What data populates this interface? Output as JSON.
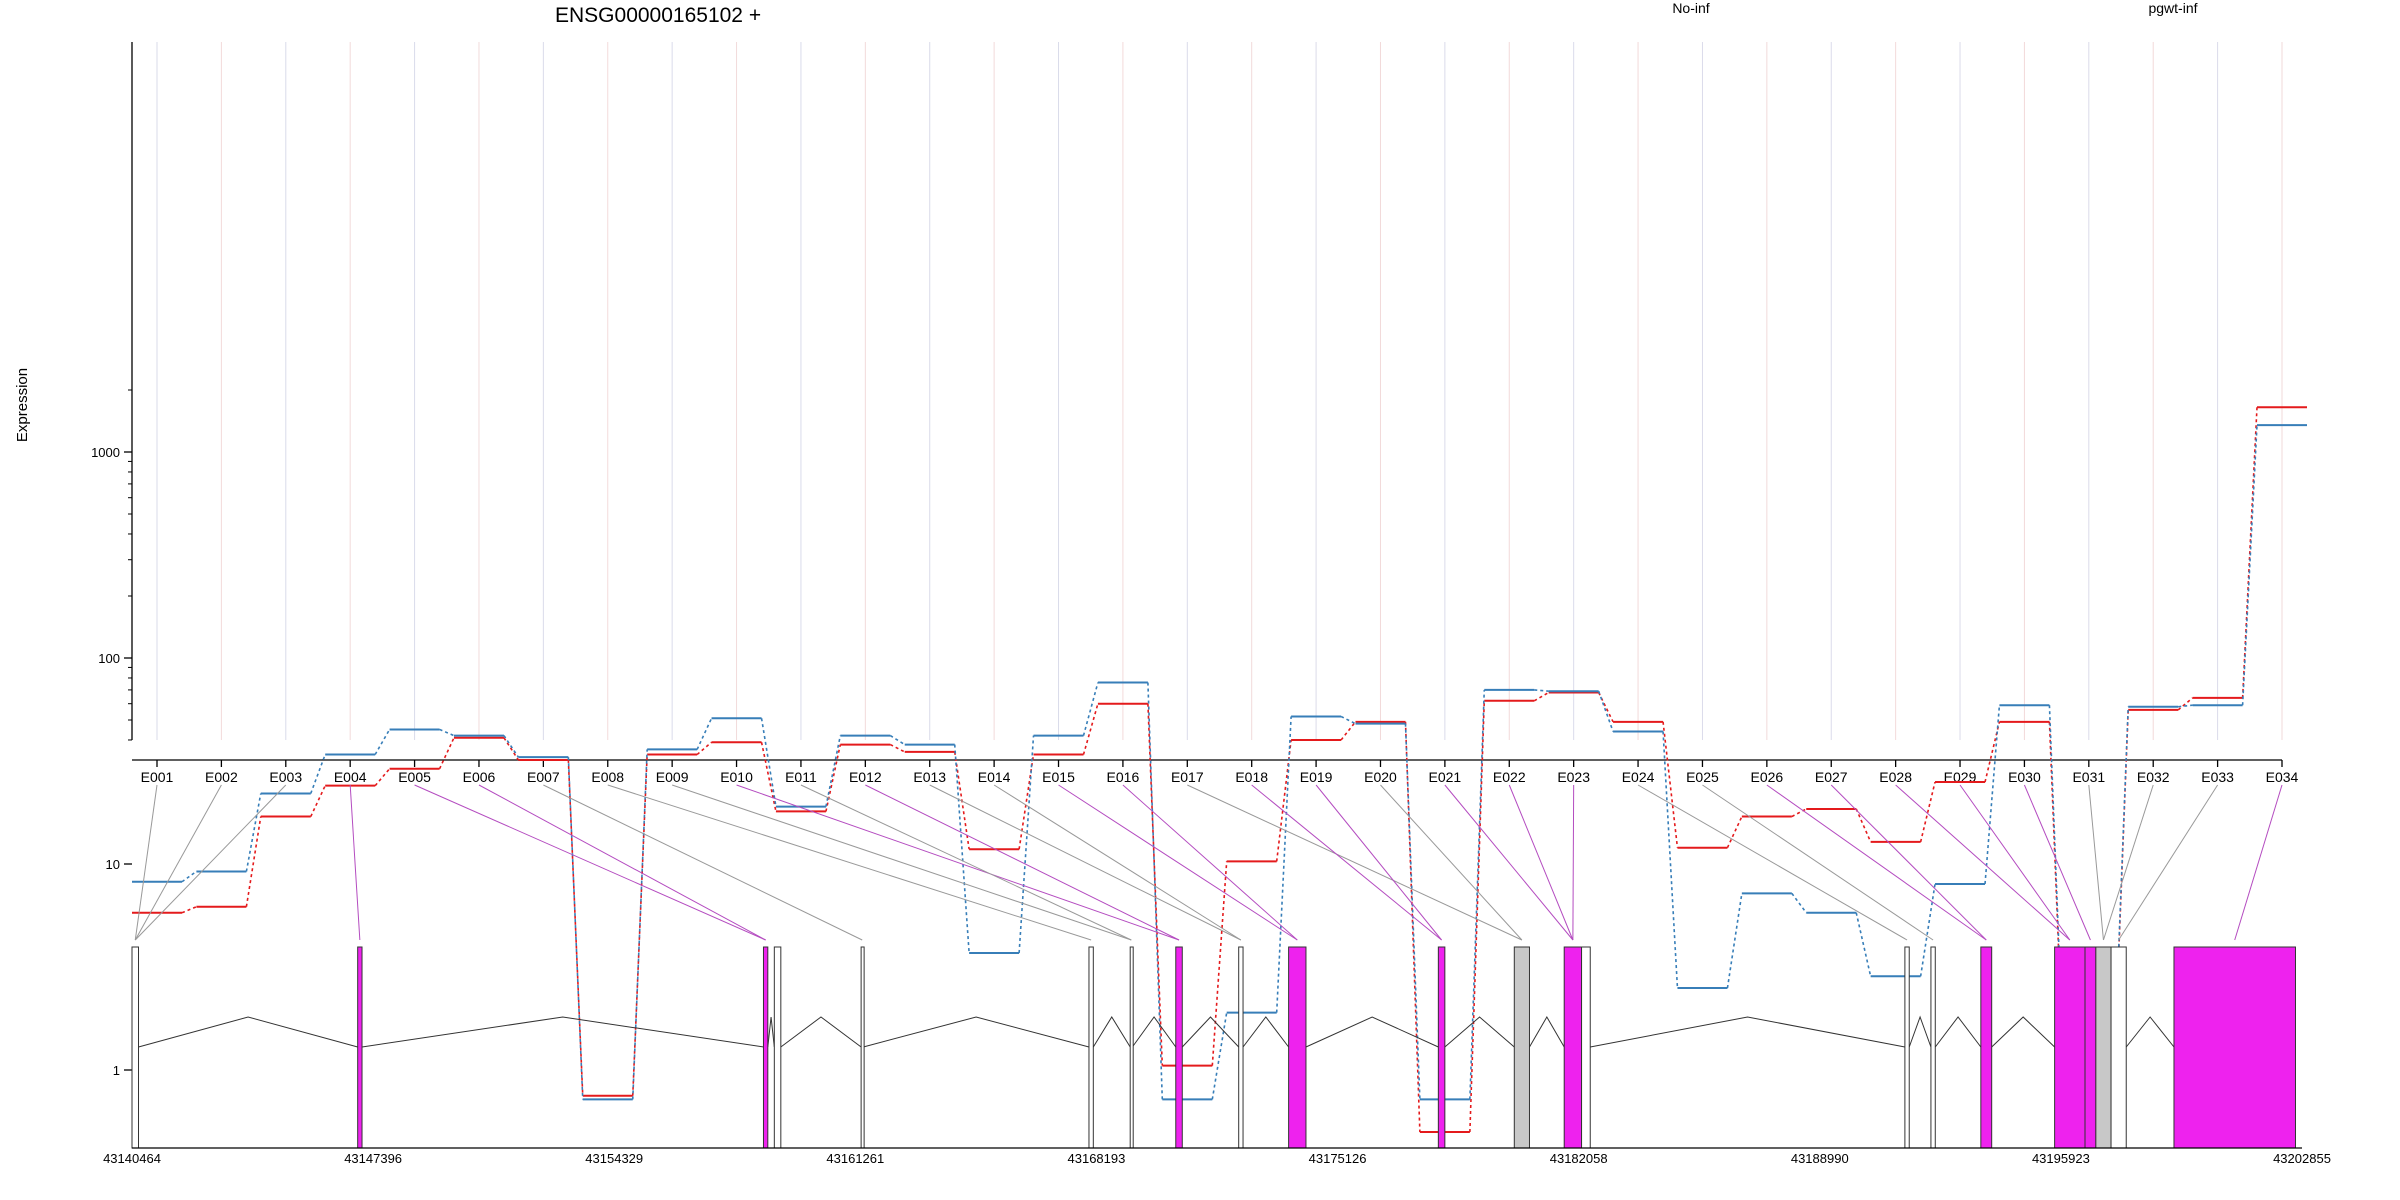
{
  "chart_data": {
    "type": "line",
    "title": "ENSG00000165102 +",
    "ylabel": "Expression",
    "yscale": "log",
    "ylim": [
      0.38,
      2200
    ],
    "yticks": [
      1,
      10,
      100,
      1000
    ],
    "ytick_labels": [
      "1",
      "10",
      "100",
      "1000"
    ],
    "grid": true,
    "legend_placement": "top",
    "categories": [
      "E001",
      "E002",
      "E003",
      "E004",
      "E005",
      "E006",
      "E007",
      "E008",
      "E009",
      "E010",
      "E011",
      "E012",
      "E013",
      "E014",
      "E015",
      "E016",
      "E017",
      "E018",
      "E019",
      "E020",
      "E021",
      "E022",
      "E023",
      "E024",
      "E025",
      "E026",
      "E027",
      "E028",
      "E029",
      "E030",
      "E031",
      "E032",
      "E033",
      "E034"
    ],
    "series": [
      {
        "name": "No-inf",
        "color": "#e41a1c",
        "values": [
          5.8,
          6.2,
          17,
          24,
          29,
          41,
          32,
          0.75,
          34,
          39,
          18,
          38,
          35,
          11.8,
          34,
          60,
          1.05,
          10.3,
          40,
          49,
          0.5,
          62,
          68,
          49,
          12,
          17,
          18.5,
          12.8,
          25,
          49,
          0.9,
          56,
          64,
          1650
        ]
      },
      {
        "name": "pgwt-inf",
        "color": "#377eb8",
        "values": [
          8.2,
          9.2,
          22,
          34,
          45,
          42,
          33,
          0.72,
          36,
          51,
          19,
          42,
          38,
          3.7,
          42,
          76,
          0.72,
          1.9,
          52,
          48,
          0.72,
          70,
          69,
          44,
          2.5,
          7.2,
          5.8,
          2.85,
          8,
          59,
          0.97,
          58,
          59,
          1350
        ]
      }
    ],
    "genome": {
      "tick_labels": [
        "43140464",
        "43147396",
        "43154329",
        "43161261",
        "43168193",
        "43175126",
        "43182058",
        "43188990",
        "43195923",
        "43202855"
      ],
      "exon_highlight_color": "#ee22ee",
      "exon_plain_color": "#ffffff",
      "exon_grey_color": "#c8c8c8"
    }
  }
}
